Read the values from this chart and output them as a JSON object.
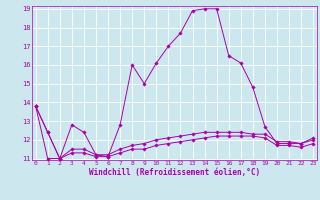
{
  "xlabel": "Windchill (Refroidissement éolien,°C)",
  "bg_color": "#cce8ee",
  "line_color": "#aa00aa",
  "grid_color": "#ffffff",
  "xmin": 0,
  "xmax": 23,
  "ymin": 11,
  "ymax": 19,
  "series": [
    [
      13.8,
      12.4,
      11.0,
      12.8,
      12.4,
      11.2,
      11.1,
      12.8,
      16.0,
      15.0,
      16.1,
      17.0,
      17.7,
      18.9,
      19.0,
      19.0,
      16.5,
      16.1,
      14.8,
      12.7,
      11.8,
      11.8,
      11.8,
      12.1
    ],
    [
      13.8,
      12.4,
      11.0,
      11.5,
      11.5,
      11.2,
      11.2,
      11.5,
      11.7,
      11.8,
      12.0,
      12.1,
      12.2,
      12.3,
      12.4,
      12.4,
      12.4,
      12.4,
      12.3,
      12.3,
      11.9,
      11.9,
      11.8,
      12.0
    ],
    [
      13.8,
      11.0,
      11.0,
      11.3,
      11.3,
      11.1,
      11.1,
      11.3,
      11.5,
      11.5,
      11.7,
      11.8,
      11.9,
      12.0,
      12.1,
      12.2,
      12.2,
      12.2,
      12.2,
      12.1,
      11.7,
      11.7,
      11.6,
      11.8
    ]
  ],
  "xticks": [
    0,
    1,
    2,
    3,
    4,
    5,
    6,
    7,
    8,
    9,
    10,
    11,
    12,
    13,
    14,
    15,
    16,
    17,
    18,
    19,
    20,
    21,
    22,
    23
  ],
  "yticks": [
    11,
    12,
    13,
    14,
    15,
    16,
    17,
    18,
    19
  ],
  "figsize": [
    3.2,
    2.0
  ],
  "dpi": 100
}
